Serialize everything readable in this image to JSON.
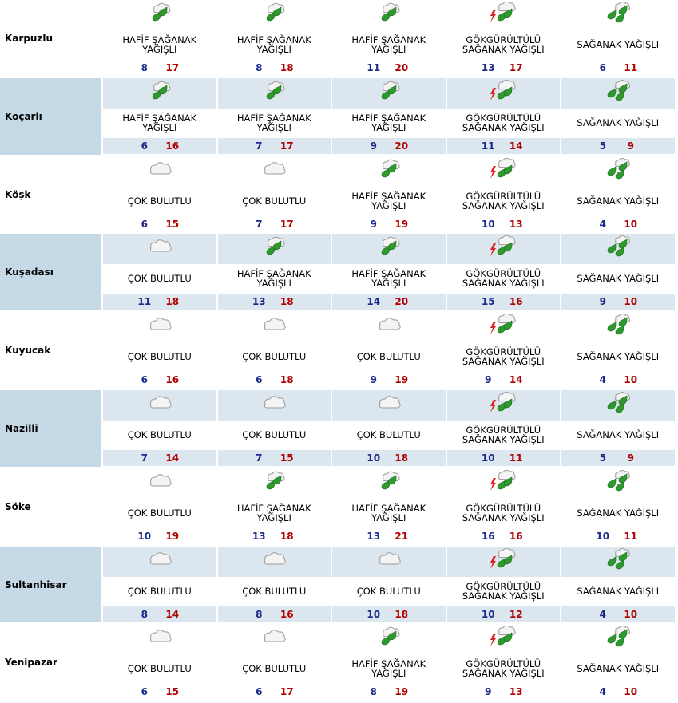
{
  "rows": [
    {
      "city": "Karpuzlu",
      "days": [
        {
          "condition": "HAFİF ŞAĞANAK\nYAĞIŞLI",
          "min": 8,
          "max": 17
        },
        {
          "condition": "HAFİF ŞAĞANAK\nYAĞIŞLI",
          "min": 8,
          "max": 18
        },
        {
          "condition": "HAFİF ŞAĞANAK\nYAĞIŞLI",
          "min": 11,
          "max": 20
        },
        {
          "condition": "GÖKGÜRÜLTÜLÜ\nSAĞANAK YAĞIŞLI",
          "min": 13,
          "max": 17
        },
        {
          "condition": "SAĞANAK YAĞIŞLI",
          "min": 6,
          "max": 11
        }
      ]
    },
    {
      "city": "Koçarlı",
      "days": [
        {
          "condition": "HAFİF ŞAĞANAK\nYAĞIŞLI",
          "min": 6,
          "max": 16
        },
        {
          "condition": "HAFİF ŞAĞANAK\nYAĞIŞLI",
          "min": 7,
          "max": 17
        },
        {
          "condition": "HAFİF ŞAĞANAK\nYAĞIŞLI",
          "min": 9,
          "max": 20
        },
        {
          "condition": "GÖKGÜRÜLTÜLÜ\nSAĞANAK YAĞIŞLI",
          "min": 11,
          "max": 14
        },
        {
          "condition": "SAĞANAK YAĞIŞLI",
          "min": 5,
          "max": 9
        }
      ]
    },
    {
      "city": "Köşk",
      "days": [
        {
          "condition": "ÇOK BULUTLU",
          "min": 6,
          "max": 15
        },
        {
          "condition": "ÇOK BULUTLU",
          "min": 7,
          "max": 17
        },
        {
          "condition": "HAFİF ŞAĞANAK\nYAĞIŞLI",
          "min": 9,
          "max": 19
        },
        {
          "condition": "GÖKGÜRÜLTÜLÜ\nSAĞANAK YAĞIŞLI",
          "min": 10,
          "max": 13
        },
        {
          "condition": "SAĞANAK YAĞIŞLI",
          "min": 4,
          "max": 10
        }
      ]
    },
    {
      "city": "Kuşadası",
      "days": [
        {
          "condition": "ÇOK BULUTLU",
          "min": 11,
          "max": 18
        },
        {
          "condition": "HAFİF ŞAĞANAK\nYAĞIŞLI",
          "min": 13,
          "max": 18
        },
        {
          "condition": "HAFİF ŞAĞANAK\nYAĞIŞLI",
          "min": 14,
          "max": 20
        },
        {
          "condition": "GÖKGÜRÜLTÜLÜ\nSAĞANAK YAĞIŞLI",
          "min": 15,
          "max": 16
        },
        {
          "condition": "SAĞANAK YAĞIŞLI",
          "min": 9,
          "max": 10
        }
      ]
    },
    {
      "city": "Kuyucak",
      "days": [
        {
          "condition": "ÇOK BULUTLU",
          "min": 6,
          "max": 16
        },
        {
          "condition": "ÇOK BULUTLU",
          "min": 6,
          "max": 18
        },
        {
          "condition": "ÇOK BULUTLU",
          "min": 9,
          "max": 19
        },
        {
          "condition": "GÖKGÜRÜLTÜLÜ\nSAĞANAK YAĞIŞLI",
          "min": 9,
          "max": 14
        },
        {
          "condition": "SAĞANAK YAĞIŞLI",
          "min": 4,
          "max": 10
        }
      ]
    },
    {
      "city": "Nazilli",
      "days": [
        {
          "condition": "ÇOK BULUTLU",
          "min": 7,
          "max": 14
        },
        {
          "condition": "ÇOK BULUTLU",
          "min": 7,
          "max": 15
        },
        {
          "condition": "ÇOK BULUTLU",
          "min": 10,
          "max": 18
        },
        {
          "condition": "GÖKGÜRÜLTÜLÜ\nSAĞANAK YAĞIŞLI",
          "min": 10,
          "max": 11
        },
        {
          "condition": "SAĞANAK YAĞIŞLI",
          "min": 5,
          "max": 9
        }
      ]
    },
    {
      "city": "Söke",
      "days": [
        {
          "condition": "ÇOK BULUTLU",
          "min": 10,
          "max": 19
        },
        {
          "condition": "HAFİF ŞAĞANAK\nYAĞIŞLI",
          "min": 13,
          "max": 18
        },
        {
          "condition": "HAFİF ŞAĞANAK\nYAĞIŞLI",
          "min": 13,
          "max": 21
        },
        {
          "condition": "GÖKGÜRÜLTÜLÜ\nSAĞANAK YAĞIŞLI",
          "min": 16,
          "max": 16
        },
        {
          "condition": "SAĞANAK YAĞIŞLI",
          "min": 10,
          "max": 11
        }
      ]
    },
    {
      "city": "Sultanhisar",
      "days": [
        {
          "condition": "ÇOK BULUTLU",
          "min": 8,
          "max": 14
        },
        {
          "condition": "ÇOK BULUTLU",
          "min": 8,
          "max": 16
        },
        {
          "condition": "ÇOK BULUTLU",
          "min": 10,
          "max": 18
        },
        {
          "condition": "GÖKGÜRÜLTÜLÜ\nSAĞANAK YAĞIŞLI",
          "min": 10,
          "max": 12
        },
        {
          "condition": "SAĞANAK YAĞIŞLI",
          "min": 4,
          "max": 10
        }
      ]
    },
    {
      "city": "Yenipazar",
      "days": [
        {
          "condition": "ÇOK BULUTLU",
          "min": 6,
          "max": 15
        },
        {
          "condition": "ÇOK BULUTLU",
          "min": 6,
          "max": 17
        },
        {
          "condition": "HAFİF ŞAĞANAK\nYAĞIŞLI",
          "min": 8,
          "max": 19
        },
        {
          "condition": "GÖKGÜRÜLTÜLÜ\nSAĞANAK YAĞIŞLI",
          "min": 9,
          "max": 13
        },
        {
          "condition": "SAĞANAK YAĞIŞLI",
          "min": 4,
          "max": 10
        }
      ]
    }
  ]
}
